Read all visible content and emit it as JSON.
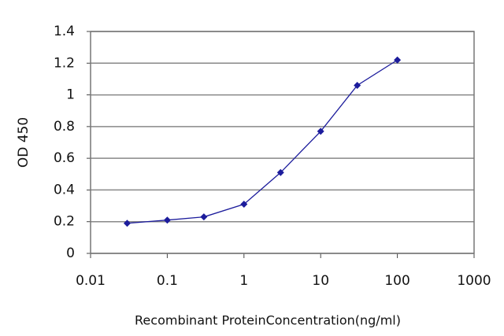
{
  "chart_data": {
    "type": "line",
    "xlabel": "Recombinant ProteinConcentration(ng/ml)",
    "ylabel": "OD 450",
    "x": [
      0.03,
      0.1,
      0.3,
      1,
      3,
      10,
      30,
      100
    ],
    "series": [
      {
        "name": null,
        "color": "#1c1c9c",
        "values": [
          0.19,
          0.21,
          0.23,
          0.31,
          0.51,
          0.77,
          1.06,
          1.22
        ]
      }
    ],
    "xscale": "log",
    "xlim": [
      0.01,
      1000
    ],
    "xticks": [
      0.01,
      0.1,
      1,
      10,
      100,
      1000
    ],
    "ylim": [
      0,
      1.4
    ],
    "yticks": [
      0,
      0.2,
      0.4,
      0.6,
      0.8,
      1,
      1.2,
      1.4
    ],
    "grid": true
  }
}
